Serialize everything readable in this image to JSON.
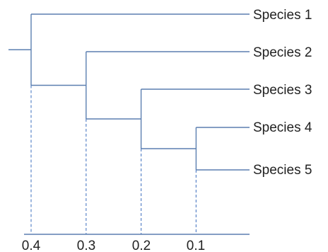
{
  "leaves": [
    {
      "id": "s1",
      "label": "Species 1"
    },
    {
      "id": "s2",
      "label": "Species 2"
    },
    {
      "id": "s3",
      "label": "Species 3"
    },
    {
      "id": "s4",
      "label": "Species 4"
    },
    {
      "id": "s5",
      "label": "Species 5"
    }
  ],
  "merges": [
    {
      "id": "n45",
      "children": [
        "s4",
        "s5"
      ],
      "height": 0.1
    },
    {
      "id": "n345",
      "children": [
        "s3",
        "n45"
      ],
      "height": 0.2
    },
    {
      "id": "n2345",
      "children": [
        "s2",
        "n345"
      ],
      "height": 0.3
    },
    {
      "id": "root",
      "children": [
        "s1",
        "n2345"
      ],
      "height": 0.4
    }
  ],
  "axis": {
    "ticks": [
      {
        "value": 0.4,
        "label": "0.4"
      },
      {
        "value": 0.3,
        "label": "0.3"
      },
      {
        "value": 0.2,
        "label": "0.2"
      },
      {
        "value": 0.1,
        "label": "0.1"
      }
    ]
  },
  "colors": {
    "branch": "#5b7fb0",
    "guide": "#5b85c8",
    "axis": "#5b7fb0"
  }
}
